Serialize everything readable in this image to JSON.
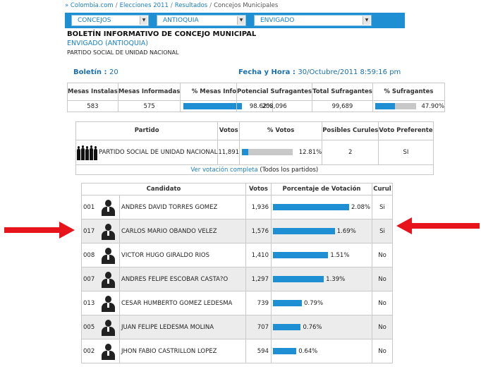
{
  "breadcrumb": [
    "» Colombia.com",
    "Elecciones 2011",
    "Resultados",
    "Concejos Municipales"
  ],
  "selectors": [
    "CONCEJOS",
    "ANTIOQUIA",
    "ENVIGADO"
  ],
  "header": {
    "title": "BOLETÍN INFORMATIVO DE CONCEJO MUNICIPAL",
    "location": "ENVIGADO (ANTIOQUIA)",
    "party": "PARTIDO SOCIAL DE UNIDAD NACIONAL"
  },
  "boletin": {
    "label": "Boletín",
    "value": "20"
  },
  "fecha": {
    "label": "Fecha y Hora",
    "value": "30/Octubre/2011 8:59:16 pm"
  },
  "mesas": {
    "headers": [
      "Mesas Instalas",
      "Mesas Informadas",
      "% Mesas Informadas"
    ],
    "instaladas": "583",
    "informadas": "575",
    "pct": "98.62%",
    "pct_value": 98.62
  },
  "sufragantes": {
    "headers": [
      "Potencial Sufragantes",
      "Total Sufragantes",
      "% Sufragantes"
    ],
    "potencial": "208,096",
    "total": "99,689",
    "pct": "47.90%",
    "pct_value": 47.9
  },
  "partido_table": {
    "headers": [
      "Partido",
      "Votos",
      "% Votos",
      "Posibles Curules",
      "Voto Preferente"
    ],
    "name": "PARTIDO SOCIAL DE UNIDAD NACIONAL",
    "votos": "11,891",
    "pct": "12.81%",
    "pct_value": 12.81,
    "curules": "2",
    "preferente": "SI",
    "link": "Ver votación completa",
    "link_suffix": "(Todos los partidos)"
  },
  "candidatos": {
    "headers": [
      "Candidato",
      "Votos",
      "Porcentaje de Votación",
      "Curul"
    ],
    "rows": [
      {
        "num": "001",
        "name": "ANDRES DAVID TORRES GOMEZ",
        "votos": "1,936",
        "pct": "2.08%",
        "pct_value": 2.08,
        "curul": "Si"
      },
      {
        "num": "017",
        "name": "CARLOS MARIO OBANDO VELEZ",
        "votos": "1,576",
        "pct": "1.69%",
        "pct_value": 1.69,
        "curul": "Si"
      },
      {
        "num": "008",
        "name": "VICTOR HUGO GIRALDO RIOS",
        "votos": "1,410",
        "pct": "1.51%",
        "pct_value": 1.51,
        "curul": "No"
      },
      {
        "num": "007",
        "name": "ANDRES FELIPE ESCOBAR CASTA?O",
        "votos": "1,297",
        "pct": "1.39%",
        "pct_value": 1.39,
        "curul": "No"
      },
      {
        "num": "013",
        "name": "CESAR HUMBERTO GOMEZ LEDESMA",
        "votos": "739",
        "pct": "0.79%",
        "pct_value": 0.79,
        "curul": "No"
      },
      {
        "num": "005",
        "name": "JUAN FELIPE LEDESMA MOLINA",
        "votos": "707",
        "pct": "0.76%",
        "pct_value": 0.76,
        "curul": "No"
      },
      {
        "num": "002",
        "name": "JHON FABIO CASTRILLON LOPEZ",
        "votos": "594",
        "pct": "0.64%",
        "pct_value": 0.64,
        "curul": "No"
      }
    ]
  },
  "colors": {
    "accent": "#1d8fd2",
    "link": "#1a7fc1",
    "arrow": "#e8141b",
    "bar_bg": "#c8c8c8"
  }
}
